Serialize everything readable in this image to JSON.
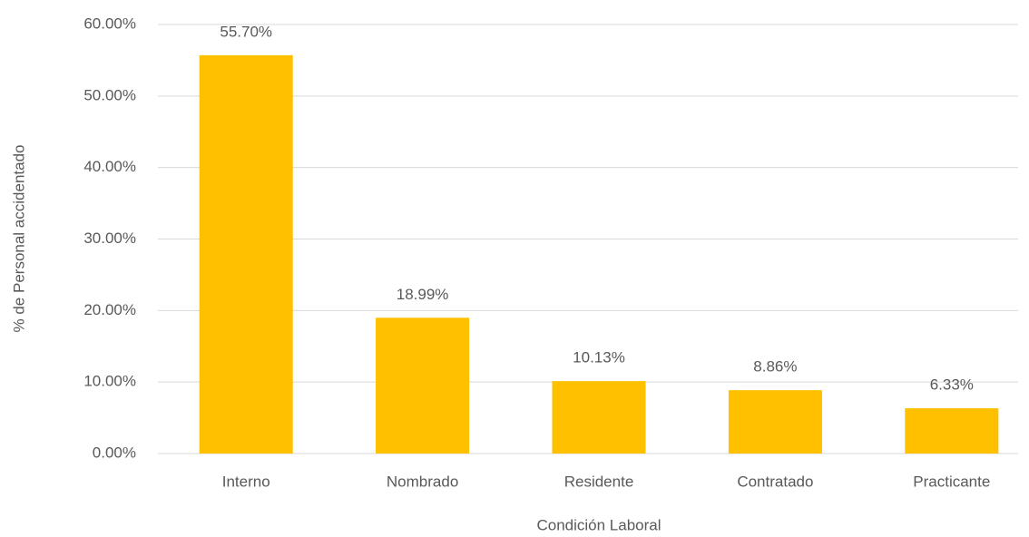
{
  "chart_data": {
    "type": "bar",
    "categories": [
      "Interno",
      "Nombrado",
      "Residente",
      "Contratado",
      "Practicante"
    ],
    "values": [
      55.7,
      18.99,
      10.13,
      8.86,
      6.33
    ],
    "value_labels": [
      "55.70%",
      "18.99%",
      "10.13%",
      "8.86%",
      "6.33%"
    ],
    "color": "#ffc000",
    "x_label": "Condición Laboral",
    "y_label": "% de Personal accidentado",
    "ylim": [
      0,
      60
    ],
    "yticks": [
      {
        "value": 0,
        "label": "0.00%"
      },
      {
        "value": 10,
        "label": "10.00%"
      },
      {
        "value": 20,
        "label": "20.00%"
      },
      {
        "value": 30,
        "label": "30.00%"
      },
      {
        "value": 40,
        "label": "40.00%"
      },
      {
        "value": 50,
        "label": "50.00%"
      },
      {
        "value": 60,
        "label": "60.00%"
      }
    ],
    "grid": true
  }
}
